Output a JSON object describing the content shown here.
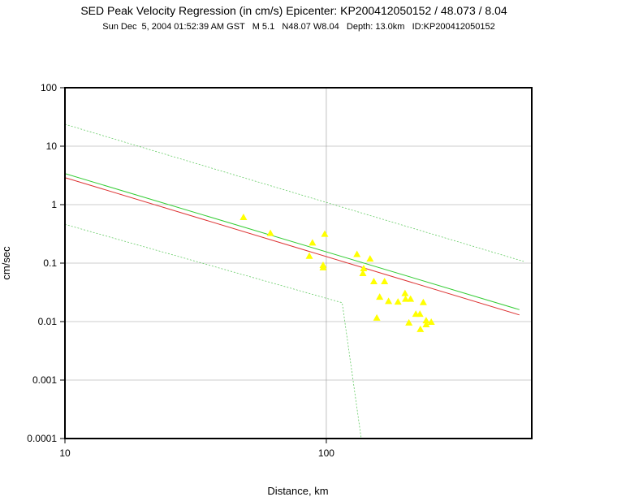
{
  "chart_data": {
    "type": "scatter",
    "title": "SED Peak Velocity Regression (in cm/s) Epicenter: KP200412050152 / 48.073 / 8.04",
    "subtitle": "Sun Dec  5, 2004 01:52:39 AM GST   M 5.1   N48.07 W8.04   Depth: 13.0km   ID:KP200412050152",
    "x_label": "Distance, km",
    "y_label": "cm/sec",
    "log_x": true,
    "log_y": true,
    "grid": true,
    "xlim": [
      10,
      611
    ],
    "ylim": [
      0.0001,
      100
    ],
    "xticks": [
      10,
      100
    ],
    "yticks": [
      100,
      10,
      1,
      0.1,
      0.01,
      0.001,
      0.0001
    ],
    "series": [
      {
        "color": "#ffff00",
        "x": [
          48.2,
          61.1,
          88.5,
          86.1,
          98.6,
          97.2,
          97.2,
          131,
          139,
          138,
          147,
          152,
          167,
          160,
          156,
          173,
          188,
          200,
          201,
          210,
          207,
          220,
          228,
          235,
          229,
          241,
          241,
          252
        ],
        "values": [
          0.6,
          0.32,
          0.22,
          0.13,
          0.31,
          0.083,
          0.091,
          0.14,
          0.08,
          0.066,
          0.117,
          0.048,
          0.048,
          0.026,
          0.0114,
          0.022,
          0.0215,
          0.03,
          0.024,
          0.024,
          0.0094,
          0.0133,
          0.0133,
          0.021,
          0.0073,
          0.0103,
          0.0088,
          0.0097
        ]
      }
    ],
    "lines": [
      {
        "color": "#33cc33",
        "dashed": false,
        "x": [
          10,
          548
        ],
        "values": [
          3.4,
          0.016
        ]
      },
      {
        "color": "#dd3333",
        "dashed": false,
        "x": [
          10,
          548
        ],
        "values": [
          2.9,
          0.013
        ]
      },
      {
        "color": "#66cc66",
        "dashed": true,
        "x": [
          10,
          569
        ],
        "values": [
          23.7,
          0.107
        ]
      },
      {
        "color": "#66cc66",
        "dashed": true,
        "x": [
          10,
          115,
          136
        ],
        "values": [
          0.46,
          0.021,
          0.0001
        ]
      }
    ]
  }
}
